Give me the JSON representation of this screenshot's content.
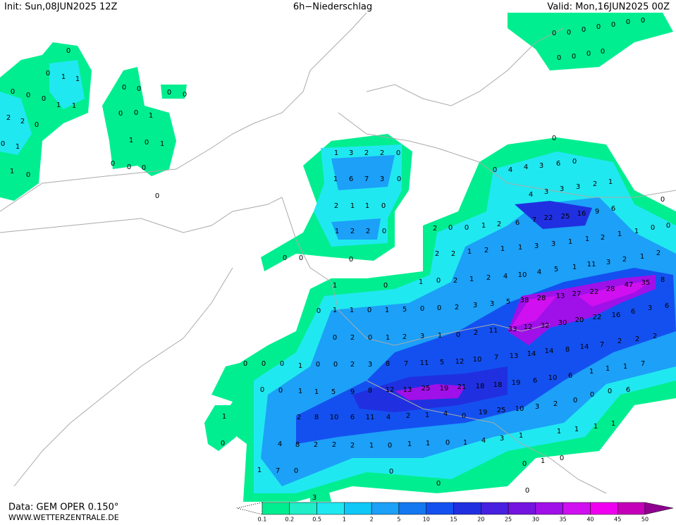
{
  "header": {
    "init": "Init: Sun,08JUN2025 12Z",
    "title": "6h−Niederschlag",
    "valid": "Valid: Mon,16JUN2025 00Z"
  },
  "footer": {
    "data": "Data: GEM OPER 0.150°",
    "site": "WWW.WETTERZENTRALE.DE"
  },
  "legend": {
    "labels": [
      0.1,
      0.2,
      0.5,
      1,
      2,
      5,
      10,
      15,
      20,
      25,
      30,
      35,
      40,
      45,
      50
    ],
    "colors": [
      "#00ee90",
      "#20eec8",
      "#20e8f0",
      "#10c8f8",
      "#1ca0f8",
      "#1478f0",
      "#1450f0",
      "#2030e0",
      "#4820e0",
      "#7414e0",
      "#a010e8",
      "#d010f0",
      "#f000f0",
      "#c400b8",
      "#900090"
    ]
  },
  "map_labels": [
    0,
    0,
    1,
    1,
    0,
    0,
    0,
    1,
    1,
    2,
    2,
    0,
    0,
    1,
    1,
    0,
    0,
    0,
    0,
    0,
    0,
    0,
    1,
    1,
    0,
    1,
    0,
    0,
    0,
    0,
    1,
    3,
    2,
    2,
    0,
    1,
    6,
    7,
    3,
    0,
    2,
    1,
    1,
    0,
    1,
    2,
    2,
    0,
    0,
    0,
    0,
    0,
    0,
    4,
    4,
    3,
    6,
    0,
    4,
    3,
    3,
    3,
    2,
    1,
    0,
    22,
    25,
    16,
    9,
    6,
    2,
    0,
    0,
    1,
    2,
    6,
    7,
    38,
    28,
    13,
    27,
    22,
    28,
    47,
    35,
    33,
    12,
    32,
    30,
    20,
    22,
    16,
    6,
    3,
    6,
    8,
    12,
    13,
    25,
    19,
    21,
    18,
    18,
    19,
    6,
    10,
    6,
    19,
    25,
    10,
    3,
    2,
    8,
    9,
    5,
    1,
    1,
    0,
    0,
    0,
    2,
    3,
    8,
    7,
    11,
    5,
    12,
    10,
    7,
    13,
    14,
    14,
    8,
    14,
    7,
    2,
    2,
    2,
    2,
    8,
    10,
    6,
    11,
    4,
    2,
    1,
    4,
    4,
    8,
    2,
    2,
    2,
    1,
    0,
    1,
    7,
    0,
    0,
    1,
    1,
    0,
    1,
    5,
    0,
    0,
    2,
    3,
    3,
    5,
    1,
    0,
    2,
    1,
    2,
    4,
    10,
    4,
    5,
    1,
    11,
    3,
    2,
    1,
    2,
    2,
    2,
    1,
    2,
    1,
    1,
    3,
    3,
    1,
    1,
    2,
    1,
    1,
    0,
    0,
    0,
    2,
    0,
    1,
    2,
    3,
    1,
    0,
    2,
    11,
    0,
    0,
    0,
    0,
    0,
    0,
    0,
    0,
    0,
    0,
    0,
    0,
    1,
    1,
    0,
    0,
    0,
    0,
    1,
    0,
    0,
    3,
    1,
    4,
    3,
    1,
    1,
    1,
    0,
    1,
    1,
    1,
    1,
    6,
    0,
    0,
    0,
    1,
    1,
    1,
    7,
    0,
    0,
    0,
    0,
    1,
    0
  ]
}
